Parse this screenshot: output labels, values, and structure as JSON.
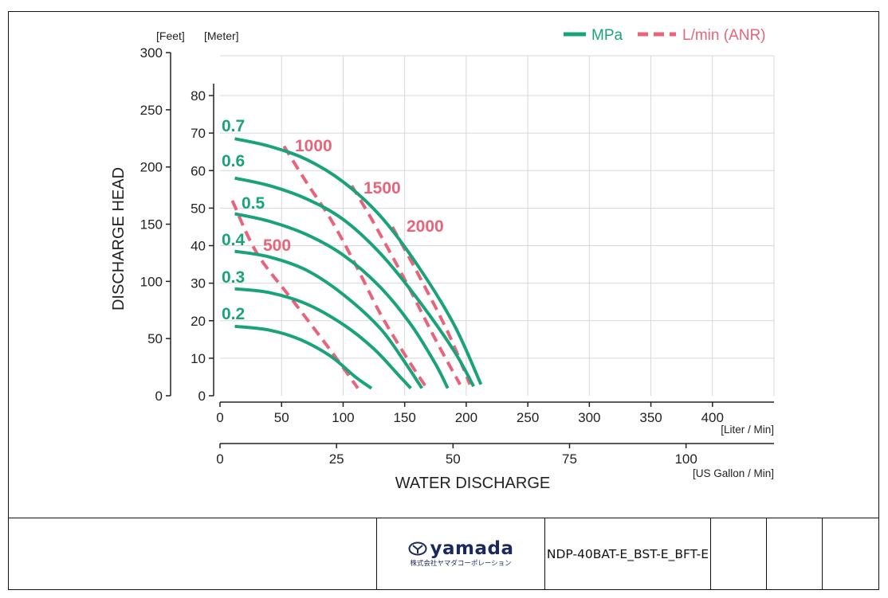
{
  "chart_data": {
    "type": "line",
    "xlabel": "WATER DISCHARGE",
    "ylabel": "DISCHARGE HEAD",
    "x_primary": {
      "unit_label": "[Liter / Min]",
      "range": [
        0,
        450
      ],
      "ticks": [
        "0",
        "50",
        "100",
        "150",
        "200",
        "250",
        "300",
        "350",
        "400"
      ]
    },
    "x_secondary": {
      "unit_label": "[US Gallon / Min]",
      "ticks": [
        "0",
        "25",
        "50",
        "75",
        "100"
      ]
    },
    "y_meter": {
      "unit_label": "[Meter]",
      "range": [
        0,
        80
      ],
      "ticks": [
        "0",
        "10",
        "20",
        "30",
        "40",
        "50",
        "60",
        "70",
        "80"
      ]
    },
    "y_feet": {
      "unit_label": "[Feet]",
      "ticks": [
        "0",
        "50",
        "100",
        "150",
        "200",
        "250",
        "300"
      ]
    },
    "grid": true,
    "legend": {
      "placement": "top-right",
      "items": [
        {
          "label": "MPa",
          "style": "solid",
          "color": "#1aa37a"
        },
        {
          "label": "L/min (ANR)",
          "style": "dashed",
          "color": "#e8647a"
        }
      ]
    },
    "series": [
      {
        "name": "0.7",
        "group": "MPa",
        "points": [
          [
            12,
            68.5
          ],
          [
            40,
            66.5
          ],
          [
            70,
            63
          ],
          [
            100,
            57
          ],
          [
            130,
            48
          ],
          [
            160,
            35
          ],
          [
            190,
            19
          ],
          [
            212,
            3
          ]
        ]
      },
      {
        "name": "0.6",
        "group": "MPa",
        "points": [
          [
            12,
            58
          ],
          [
            40,
            56
          ],
          [
            70,
            52.5
          ],
          [
            100,
            47
          ],
          [
            130,
            38
          ],
          [
            160,
            26
          ],
          [
            190,
            12
          ],
          [
            206,
            2.5
          ]
        ]
      },
      {
        "name": "0.5",
        "group": "MPa",
        "points": [
          [
            12,
            48.5
          ],
          [
            40,
            46.5
          ],
          [
            70,
            43
          ],
          [
            100,
            37.5
          ],
          [
            130,
            29
          ],
          [
            155,
            19
          ],
          [
            175,
            8.5
          ],
          [
            185,
            2
          ]
        ]
      },
      {
        "name": "0.4",
        "group": "MPa",
        "points": [
          [
            12,
            38.5
          ],
          [
            40,
            37
          ],
          [
            70,
            33.5
          ],
          [
            100,
            27
          ],
          [
            130,
            18
          ],
          [
            150,
            9
          ],
          [
            164,
            2
          ]
        ]
      },
      {
        "name": "0.3",
        "group": "MPa",
        "points": [
          [
            12,
            28.5
          ],
          [
            40,
            27.5
          ],
          [
            70,
            24.5
          ],
          [
            100,
            19
          ],
          [
            125,
            12.5
          ],
          [
            145,
            5.5
          ],
          [
            155,
            2
          ]
        ]
      },
      {
        "name": "0.2",
        "group": "MPa",
        "points": [
          [
            12,
            18.5
          ],
          [
            40,
            17.5
          ],
          [
            65,
            15
          ],
          [
            90,
            10.5
          ],
          [
            110,
            5
          ],
          [
            123,
            2
          ]
        ]
      },
      {
        "name": "500",
        "group": "L/min (ANR)",
        "points": [
          [
            10,
            52
          ],
          [
            30,
            38
          ],
          [
            60,
            25
          ],
          [
            90,
            12
          ],
          [
            112,
            2
          ]
        ]
      },
      {
        "name": "1000",
        "group": "L/min (ANR)",
        "points": [
          [
            52,
            66.5
          ],
          [
            70,
            57
          ],
          [
            90,
            47
          ],
          [
            110,
            35
          ],
          [
            130,
            22
          ],
          [
            150,
            11
          ],
          [
            168,
            2
          ]
        ]
      },
      {
        "name": "1500",
        "group": "L/min (ANR)",
        "points": [
          [
            107,
            56
          ],
          [
            125,
            46
          ],
          [
            150,
            31
          ],
          [
            175,
            15
          ],
          [
            195,
            3
          ]
        ]
      },
      {
        "name": "2000",
        "group": "L/min (ANR)",
        "points": [
          [
            140,
            45
          ],
          [
            160,
            33
          ],
          [
            185,
            17
          ],
          [
            203,
            3
          ]
        ]
      }
    ],
    "curve_labels": [
      "0.7",
      "0.6",
      "0.5",
      "0.4",
      "0.3",
      "0.2",
      "1000",
      "1500",
      "2000",
      "500"
    ]
  },
  "footer": {
    "logo_text": "yamada",
    "logo_subtext": "株式会社ヤマダコーポレーション",
    "part_number": "NDP-40BAT-E_BST-E_BFT-E"
  },
  "colors": {
    "mpa": "#1aa37a",
    "anr": "#e8647a",
    "grid": "#d7d7d7",
    "axis": "#222222",
    "logo": "#1b2a5c"
  }
}
